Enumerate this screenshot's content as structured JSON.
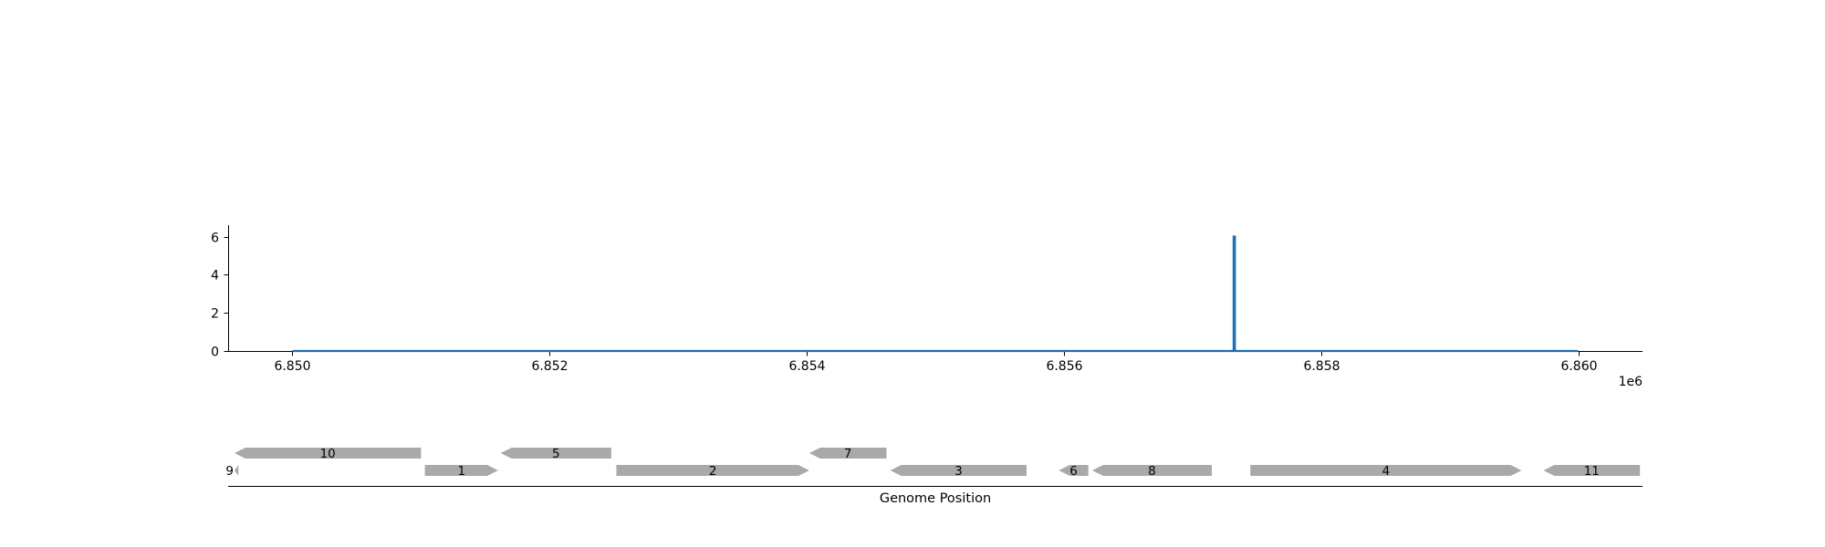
{
  "chart_data": [
    {
      "type": "line",
      "x_multiplier_label": "1e6",
      "xlim": [
        6849500,
        6860500
      ],
      "ylim": [
        0,
        6.6
      ],
      "x_ticks": [
        {
          "value": 6850000,
          "label": "6.850"
        },
        {
          "value": 6852000,
          "label": "6.852"
        },
        {
          "value": 6854000,
          "label": "6.854"
        },
        {
          "value": 6856000,
          "label": "6.856"
        },
        {
          "value": 6858000,
          "label": "6.858"
        },
        {
          "value": 6860000,
          "label": "6.860"
        }
      ],
      "y_ticks": [
        {
          "value": 0,
          "label": "0"
        },
        {
          "value": 2,
          "label": "2"
        },
        {
          "value": 4,
          "label": "4"
        },
        {
          "value": 6,
          "label": "6"
        }
      ],
      "series": [
        {
          "color": "#1f6fb4",
          "x": [
            6850000,
            6857320,
            6857320,
            6857330,
            6857330,
            6860000
          ],
          "y": [
            0,
            0,
            6,
            6,
            0,
            0
          ]
        }
      ],
      "grid": false
    },
    {
      "type": "gene_track",
      "xlabel": "Genome Position",
      "xlim": [
        6849500,
        6860500
      ],
      "feature_color": "#a9a9a9",
      "genes": [
        {
          "label": "10",
          "start": 6849550,
          "end": 6851000,
          "strand": "-",
          "row": 1
        },
        {
          "label": "5",
          "start": 6851620,
          "end": 6852480,
          "strand": "-",
          "row": 1
        },
        {
          "label": "7",
          "start": 6854020,
          "end": 6854620,
          "strand": "-",
          "row": 1
        },
        {
          "label": "9",
          "start": 6849550,
          "end": 6849580,
          "strand": "-",
          "row": 0
        },
        {
          "label": "1",
          "start": 6851030,
          "end": 6851600,
          "strand": "+",
          "row": 0
        },
        {
          "label": "2",
          "start": 6852520,
          "end": 6854020,
          "strand": "+",
          "row": 0
        },
        {
          "label": "3",
          "start": 6854650,
          "end": 6855710,
          "strand": "-",
          "row": 0
        },
        {
          "label": "6",
          "start": 6855960,
          "end": 6856190,
          "strand": "-",
          "row": 0
        },
        {
          "label": "8",
          "start": 6856220,
          "end": 6857150,
          "strand": "-",
          "row": 0
        },
        {
          "label": "4",
          "start": 6857450,
          "end": 6859560,
          "strand": "+",
          "row": 0
        },
        {
          "label": "11",
          "start": 6859730,
          "end": 6860480,
          "strand": "-",
          "row": 0
        }
      ]
    }
  ]
}
